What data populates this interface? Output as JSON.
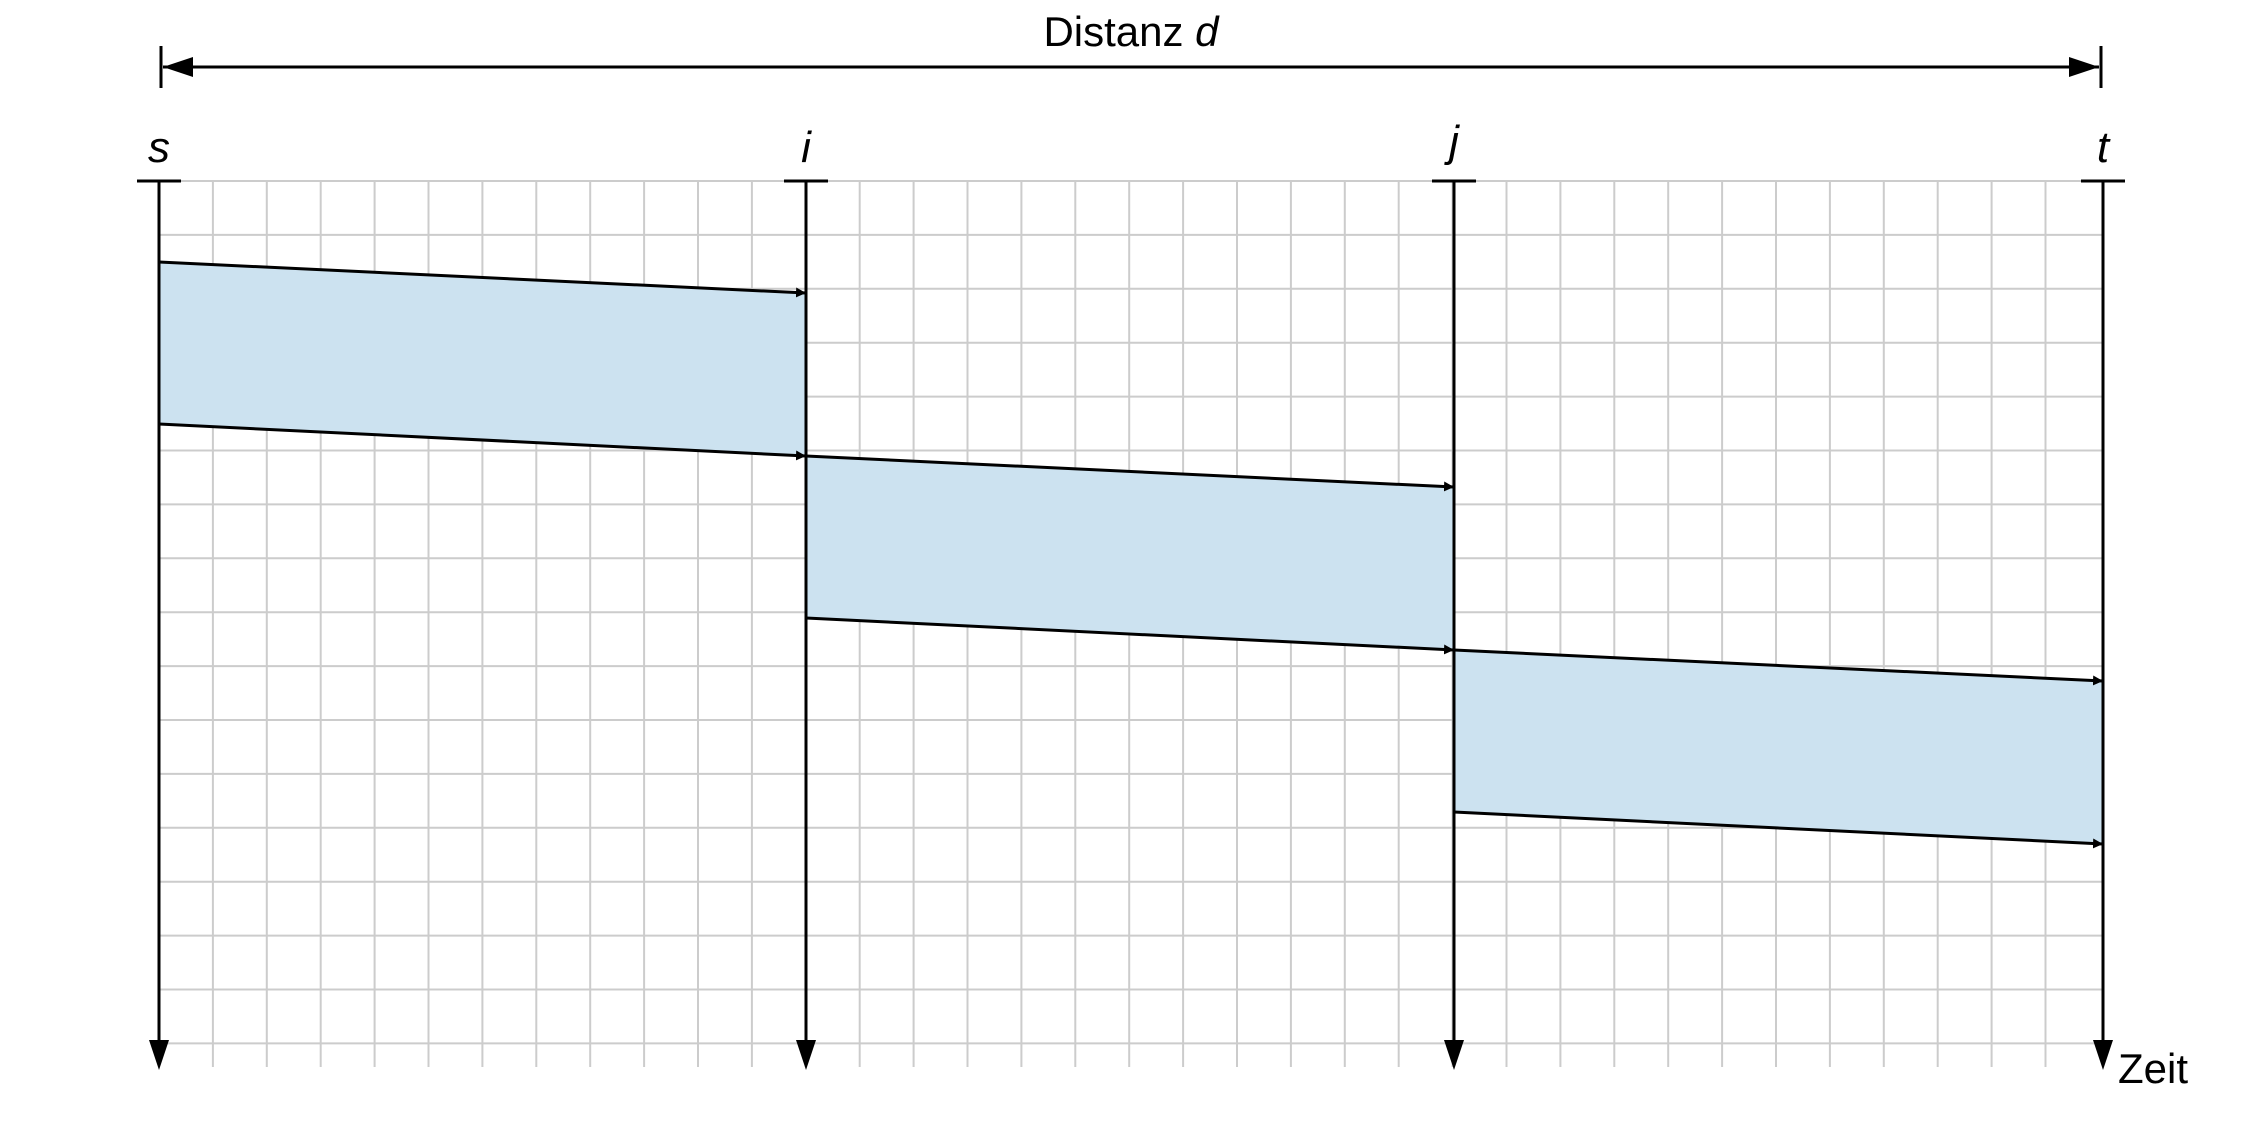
{
  "distance_label": {
    "text": "Distanz ",
    "var": "d"
  },
  "time_label": "Zeit",
  "nodes": [
    {
      "id": "s",
      "label": "s"
    },
    {
      "id": "i",
      "label": "i"
    },
    {
      "id": "j",
      "label": "j"
    },
    {
      "id": "t",
      "label": "t"
    }
  ],
  "colors": {
    "band_fill": "#cce2f0",
    "grid": "#cccccc",
    "line": "#000000"
  },
  "transmissions": [
    {
      "from": "s",
      "to": "i"
    },
    {
      "from": "i",
      "to": "j"
    },
    {
      "from": "j",
      "to": "t"
    }
  ]
}
